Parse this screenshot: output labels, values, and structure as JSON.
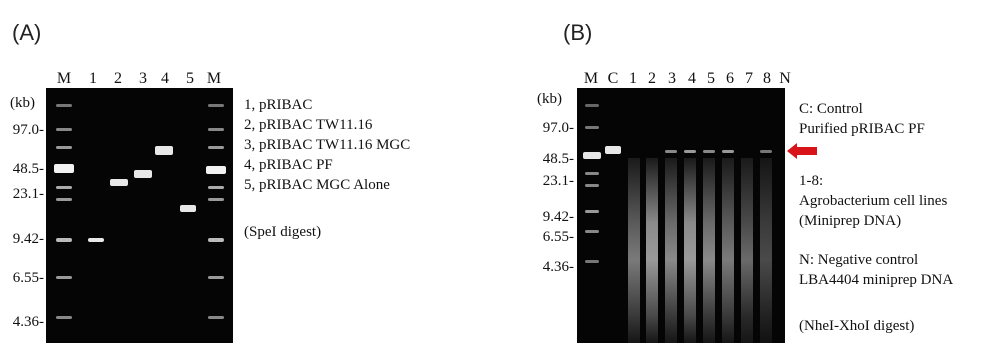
{
  "figure": {
    "panels": [
      {
        "letter": "(A)",
        "unit": "(kb)",
        "lanes": [
          "M",
          "1",
          "2",
          "3",
          "4",
          "5",
          "M"
        ],
        "sizes": [
          "97.0-",
          "48.5-",
          "23.1-",
          "9.42-",
          "6.55-",
          "4.36-"
        ],
        "legend": [
          "1, pRIBAC",
          "2, pRIBAC TW11.16",
          "3, pRIBAC TW11.16 MGC",
          "4, pRIBAC PF",
          "5, pRIBAC MGC Alone",
          "",
          "(SpeI digest)"
        ]
      },
      {
        "letter": "(B)",
        "unit": "(kb)",
        "lanes": [
          "M",
          "C",
          "1",
          "2",
          "3",
          "4",
          "5",
          "6",
          "7",
          "8",
          "N"
        ],
        "sizes": [
          "97.0-",
          "48.5-",
          "23.1-",
          "9.42-",
          "6.55-",
          "4.36-"
        ],
        "legend": [
          "C: Control",
          "Purified pRIBAC PF",
          "",
          "1-8:",
          "Agrobacterium cell lines",
          "(Miniprep DNA)",
          "",
          "N: Negative control",
          "LBA4404 miniprep DNA",
          "",
          "(NheI-XhoI digest)"
        ]
      }
    ],
    "colors": {
      "gel": "#050505",
      "band": "#e8e8e8",
      "arrow": "#d8141a"
    },
    "icons": [
      "red-arrow-icon"
    ]
  }
}
